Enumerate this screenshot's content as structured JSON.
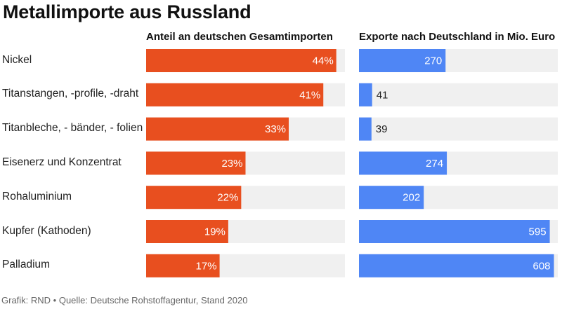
{
  "title": "Metallimporte aus Russland",
  "source": "Grafik: RND • Quelle: Deutsche Rohstoffagentur, Stand 2020",
  "colors": {
    "share_bar": "#e84f1f",
    "export_bar": "#4f86f5",
    "track": "#f0f0f0"
  },
  "chart_data": [
    {
      "type": "bar",
      "orientation": "horizontal",
      "title": "Anteil an deutschen Gesamtimporten",
      "categories": [
        "Nickel",
        "Titanstangen, -profile, -draht",
        "Titanbleche, - bänder, - folien",
        "Eisenerz und Konzentrat",
        "Rohaluminium",
        "Kupfer (Kathoden)",
        "Palladium"
      ],
      "values": [
        44,
        41,
        33,
        23,
        22,
        19,
        17
      ],
      "value_labels": [
        "44%",
        "41%",
        "33%",
        "23%",
        "22%",
        "19%",
        "17%"
      ],
      "xlim": [
        0,
        46
      ]
    },
    {
      "type": "bar",
      "orientation": "horizontal",
      "title": "Exporte nach Deutschland in Mio. Euro",
      "categories": [
        "Nickel",
        "Titanstangen, -profile, -draht",
        "Titanbleche, - bänder, - folien",
        "Eisenerz und Konzentrat",
        "Rohaluminium",
        "Kupfer (Kathoden)",
        "Palladium"
      ],
      "values": [
        270,
        41,
        39,
        274,
        202,
        595,
        608
      ],
      "value_labels": [
        "270",
        "41",
        "39",
        "274",
        "202",
        "595",
        "608"
      ],
      "xlim": [
        0,
        620
      ]
    }
  ]
}
